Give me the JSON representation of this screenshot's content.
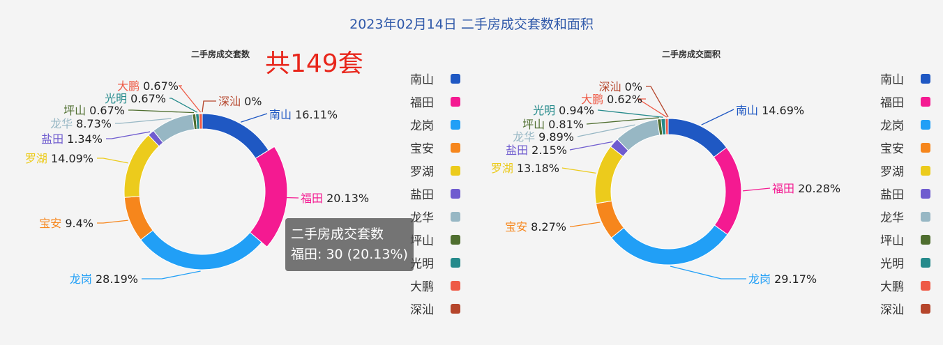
{
  "title": "2023年02月14日 二手房成交套数和面积",
  "total_label": "共149套",
  "tooltip": {
    "title": "二手房成交套数",
    "line": "福田: 30 (20.13%)"
  },
  "colors": {
    "南山": "#1f58c3",
    "福田": "#f41a91",
    "龙岗": "#219ff6",
    "宝安": "#f6861c",
    "罗湖": "#eccb1c",
    "盐田": "#6f5ccf",
    "龙华": "#97b7c4",
    "坪山": "#4f6e2f",
    "光明": "#258a8b",
    "大鹏": "#ee5a46",
    "深汕": "#b5452b"
  },
  "chart_data": [
    {
      "type": "pie",
      "subtitle": "二手房成交套数",
      "legend": [
        "南山",
        "福田",
        "龙岗",
        "宝安",
        "罗湖",
        "盐田",
        "龙华",
        "坪山",
        "光明",
        "大鹏",
        "深汕"
      ],
      "slices": [
        {
          "name": "南山",
          "value": 24,
          "percent": "16.11%"
        },
        {
          "name": "福田",
          "value": 30,
          "percent": "20.13%"
        },
        {
          "name": "龙岗",
          "value": 42,
          "percent": "28.19%"
        },
        {
          "name": "宝安",
          "value": 14,
          "percent": "9.4%"
        },
        {
          "name": "罗湖",
          "value": 21,
          "percent": "14.09%"
        },
        {
          "name": "盐田",
          "value": 2,
          "percent": "1.34%"
        },
        {
          "name": "龙华",
          "value": 13,
          "percent": "8.73%"
        },
        {
          "name": "坪山",
          "value": 1,
          "percent": "0.67%"
        },
        {
          "name": "光明",
          "value": 1,
          "percent": "0.67%"
        },
        {
          "name": "大鹏",
          "value": 1,
          "percent": "0.67%"
        },
        {
          "name": "深汕",
          "value": 0,
          "percent": "0%"
        }
      ]
    },
    {
      "type": "pie",
      "subtitle": "二手房成交面积",
      "legend": [
        "南山",
        "福田",
        "龙岗",
        "宝安",
        "罗湖",
        "盐田",
        "龙华",
        "坪山",
        "光明",
        "大鹏",
        "深汕"
      ],
      "slices": [
        {
          "name": "南山",
          "value": 14.69,
          "percent": "14.69%"
        },
        {
          "name": "福田",
          "value": 20.28,
          "percent": "20.28%"
        },
        {
          "name": "龙岗",
          "value": 29.17,
          "percent": "29.17%"
        },
        {
          "name": "宝安",
          "value": 8.27,
          "percent": "8.27%"
        },
        {
          "name": "罗湖",
          "value": 13.18,
          "percent": "13.18%"
        },
        {
          "name": "盐田",
          "value": 2.15,
          "percent": "2.15%"
        },
        {
          "name": "龙华",
          "value": 9.89,
          "percent": "9.89%"
        },
        {
          "name": "坪山",
          "value": 0.81,
          "percent": "0.81%"
        },
        {
          "name": "光明",
          "value": 0.94,
          "percent": "0.94%"
        },
        {
          "name": "大鹏",
          "value": 0.62,
          "percent": "0.62%"
        },
        {
          "name": "深汕",
          "value": 0,
          "percent": "0%"
        }
      ]
    }
  ]
}
